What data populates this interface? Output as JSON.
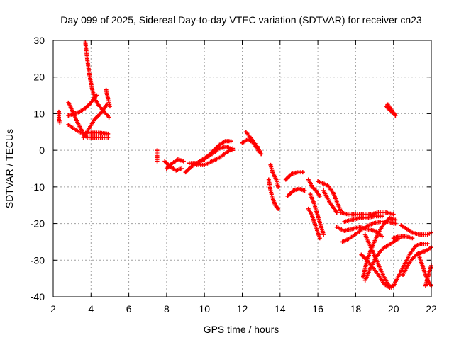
{
  "chart_data": {
    "type": "scatter",
    "title": "Day 099 of 2025, Sidereal Day-to-day VTEC variation (SDTVAR) for receiver cn23",
    "xlabel": "GPS time / hours",
    "ylabel": "SDTVAR / TECUs",
    "xlim": [
      2,
      22
    ],
    "ylim": [
      -40,
      30
    ],
    "xticks": [
      "2",
      "4",
      "6",
      "8",
      "10",
      "12",
      "14",
      "16",
      "18",
      "20",
      "22"
    ],
    "yticks": [
      "30",
      "20",
      "10",
      "0",
      "-10",
      "-20",
      "-30",
      "-40"
    ],
    "grid": true,
    "marker": "+",
    "series_color": "#ff0000",
    "tracks": [
      [
        [
          3.7,
          29.5
        ],
        [
          3.8,
          25
        ],
        [
          3.9,
          21
        ],
        [
          4.05,
          17
        ],
        [
          4.2,
          14
        ],
        [
          4.45,
          12
        ],
        [
          4.7,
          10.5
        ],
        [
          4.95,
          9
        ]
      ],
      [
        [
          2.8,
          9.5
        ],
        [
          3.1,
          10
        ],
        [
          3.4,
          10.5
        ],
        [
          3.7,
          11.5
        ],
        [
          4.0,
          13
        ],
        [
          4.2,
          14.5
        ],
        [
          4.3,
          15
        ]
      ],
      [
        [
          2.8,
          13
        ],
        [
          3.0,
          11
        ],
        [
          3.2,
          8.5
        ],
        [
          3.4,
          6.5
        ],
        [
          3.6,
          4.5
        ],
        [
          3.8,
          3.5
        ],
        [
          4.1,
          3.5
        ],
        [
          4.5,
          3.5
        ],
        [
          4.9,
          3.5
        ]
      ],
      [
        [
          2.8,
          7
        ],
        [
          3.2,
          5.5
        ],
        [
          3.6,
          4.5
        ],
        [
          4.0,
          4.8
        ],
        [
          4.4,
          4.8
        ],
        [
          4.9,
          4.5
        ]
      ],
      [
        [
          3.6,
          3.5
        ],
        [
          3.9,
          6
        ],
        [
          4.2,
          8.5
        ],
        [
          4.5,
          10
        ],
        [
          4.7,
          11.5
        ],
        [
          4.85,
          12.5
        ]
      ],
      [
        [
          4.8,
          16.5
        ],
        [
          4.9,
          14
        ],
        [
          5.0,
          12
        ]
      ],
      [
        [
          2.3,
          10.5
        ],
        [
          2.3,
          8.5
        ],
        [
          2.35,
          7.5
        ]
      ],
      [
        [
          7.5,
          0
        ],
        [
          7.5,
          -1.5
        ],
        [
          7.5,
          -3
        ]
      ],
      [
        [
          7.9,
          -3
        ],
        [
          8.2,
          -4.5
        ],
        [
          8.5,
          -5.5
        ],
        [
          8.8,
          -5
        ]
      ],
      [
        [
          8.0,
          -5
        ],
        [
          8.3,
          -3.5
        ],
        [
          8.6,
          -2.5
        ],
        [
          8.9,
          -3
        ]
      ],
      [
        [
          9.0,
          -6
        ],
        [
          9.3,
          -4.5
        ],
        [
          9.6,
          -3.5
        ],
        [
          9.9,
          -2.5
        ],
        [
          10.2,
          -1.5
        ],
        [
          10.5,
          0
        ],
        [
          10.8,
          1.5
        ],
        [
          11.1,
          2.5
        ],
        [
          11.4,
          2.5
        ]
      ],
      [
        [
          9.2,
          -3.5
        ],
        [
          9.6,
          -3.5
        ],
        [
          10.0,
          -2.5
        ],
        [
          10.4,
          -1
        ],
        [
          10.8,
          0.5
        ],
        [
          11.2,
          1
        ],
        [
          11.5,
          0
        ]
      ],
      [
        [
          9.6,
          -4
        ],
        [
          10.0,
          -4
        ],
        [
          10.4,
          -3
        ],
        [
          10.8,
          -2
        ],
        [
          11.2,
          -0.5
        ],
        [
          11.5,
          0.5
        ]
      ],
      [
        [
          12.0,
          2
        ],
        [
          12.3,
          3
        ],
        [
          12.6,
          2
        ],
        [
          12.9,
          -0.5
        ]
      ],
      [
        [
          12.2,
          5
        ],
        [
          12.5,
          3
        ],
        [
          12.8,
          1
        ],
        [
          13.0,
          -1
        ]
      ],
      [
        [
          13.5,
          -4
        ],
        [
          13.6,
          -6
        ],
        [
          13.8,
          -8
        ],
        [
          13.9,
          -10
        ]
      ],
      [
        [
          13.4,
          -8
        ],
        [
          13.5,
          -11
        ],
        [
          13.6,
          -13
        ],
        [
          13.75,
          -15
        ],
        [
          13.9,
          -16
        ]
      ],
      [
        [
          14.3,
          -8
        ],
        [
          14.6,
          -6.5
        ],
        [
          14.9,
          -6
        ],
        [
          15.2,
          -6
        ]
      ],
      [
        [
          14.4,
          -12.5
        ],
        [
          14.7,
          -11
        ],
        [
          15.0,
          -10.5
        ],
        [
          15.3,
          -11
        ]
      ],
      [
        [
          15.5,
          -8
        ],
        [
          15.7,
          -10
        ],
        [
          15.9,
          -11
        ],
        [
          16.1,
          -12.5
        ]
      ],
      [
        [
          15.6,
          -12
        ],
        [
          15.8,
          -14.5
        ],
        [
          16.0,
          -18
        ],
        [
          16.3,
          -23
        ]
      ],
      [
        [
          15.5,
          -16
        ],
        [
          15.7,
          -18
        ],
        [
          15.9,
          -21
        ],
        [
          16.1,
          -24
        ]
      ],
      [
        [
          16.0,
          -8.5
        ],
        [
          16.5,
          -9.5
        ],
        [
          16.8,
          -11.5
        ],
        [
          17.0,
          -14
        ],
        [
          17.2,
          -16.5
        ]
      ],
      [
        [
          16.3,
          -11
        ],
        [
          16.6,
          -14
        ],
        [
          16.8,
          -15.5
        ],
        [
          17.0,
          -17
        ]
      ],
      [
        [
          17.2,
          -17
        ],
        [
          17.6,
          -17.5
        ],
        [
          18.0,
          -17.5
        ],
        [
          18.4,
          -17.5
        ],
        [
          18.8,
          -17.5
        ],
        [
          19.2,
          -17
        ],
        [
          19.6,
          -17
        ],
        [
          20.0,
          -17.5
        ]
      ],
      [
        [
          17.4,
          -19.5
        ],
        [
          17.8,
          -19
        ],
        [
          18.2,
          -18.5
        ],
        [
          18.6,
          -18.5
        ],
        [
          19.0,
          -18
        ],
        [
          19.4,
          -18
        ]
      ],
      [
        [
          17.0,
          -21
        ],
        [
          17.4,
          -22
        ],
        [
          17.8,
          -21.5
        ],
        [
          18.2,
          -21
        ],
        [
          18.6,
          -21.5
        ],
        [
          19.0,
          -22
        ],
        [
          19.4,
          -23.5
        ]
      ],
      [
        [
          17.3,
          -25
        ],
        [
          17.7,
          -24
        ],
        [
          18.1,
          -22.5
        ],
        [
          18.5,
          -21
        ],
        [
          18.9,
          -20
        ],
        [
          19.3,
          -19.5
        ],
        [
          19.7,
          -19.5
        ],
        [
          20.1,
          -20
        ]
      ],
      [
        [
          18.4,
          -34.5
        ],
        [
          18.6,
          -30
        ],
        [
          18.9,
          -26
        ],
        [
          19.2,
          -22.5
        ],
        [
          19.5,
          -20
        ],
        [
          19.8,
          -18.5
        ],
        [
          20.1,
          -19
        ]
      ],
      [
        [
          18.5,
          -35.5
        ],
        [
          18.8,
          -32
        ],
        [
          19.1,
          -29
        ],
        [
          19.4,
          -27
        ],
        [
          19.7,
          -26
        ],
        [
          20.0,
          -25
        ],
        [
          20.3,
          -24
        ]
      ],
      [
        [
          18.3,
          -28.5
        ],
        [
          18.6,
          -30
        ],
        [
          18.9,
          -32
        ],
        [
          19.2,
          -34
        ],
        [
          19.5,
          -36.5
        ],
        [
          19.8,
          -37.5
        ],
        [
          20.0,
          -37
        ]
      ],
      [
        [
          18.5,
          -23
        ],
        [
          18.8,
          -26.5
        ],
        [
          19.1,
          -30
        ],
        [
          19.4,
          -33.5
        ],
        [
          19.7,
          -36.5
        ],
        [
          19.9,
          -37.5
        ]
      ],
      [
        [
          20.0,
          -37
        ],
        [
          20.3,
          -34
        ],
        [
          20.6,
          -31
        ],
        [
          20.9,
          -28
        ],
        [
          21.2,
          -26
        ],
        [
          21.5,
          -25.5
        ],
        [
          21.8,
          -25.5
        ]
      ],
      [
        [
          20.0,
          -24
        ],
        [
          20.3,
          -23.5
        ],
        [
          20.6,
          -23.5
        ],
        [
          21.0,
          -24
        ]
      ],
      [
        [
          20.4,
          -20.5
        ],
        [
          20.7,
          -21.5
        ],
        [
          21.0,
          -22.5
        ],
        [
          21.4,
          -23
        ],
        [
          21.8,
          -23
        ],
        [
          22.0,
          -22.5
        ]
      ],
      [
        [
          20.5,
          -34
        ],
        [
          20.8,
          -31
        ],
        [
          21.1,
          -29
        ],
        [
          21.4,
          -28
        ],
        [
          21.7,
          -27.5
        ],
        [
          22.0,
          -26.5
        ]
      ],
      [
        [
          21.3,
          -28
        ],
        [
          21.5,
          -31
        ],
        [
          21.7,
          -34
        ],
        [
          21.85,
          -36
        ],
        [
          22.0,
          -37
        ]
      ],
      [
        [
          21.7,
          -37
        ],
        [
          21.85,
          -34
        ],
        [
          22.0,
          -31.5
        ]
      ],
      [
        [
          19.6,
          12
        ],
        [
          19.8,
          11
        ],
        [
          20.0,
          10
        ]
      ],
      [
        [
          19.7,
          12.5
        ],
        [
          19.9,
          11
        ],
        [
          20.1,
          9.5
        ]
      ]
    ]
  }
}
